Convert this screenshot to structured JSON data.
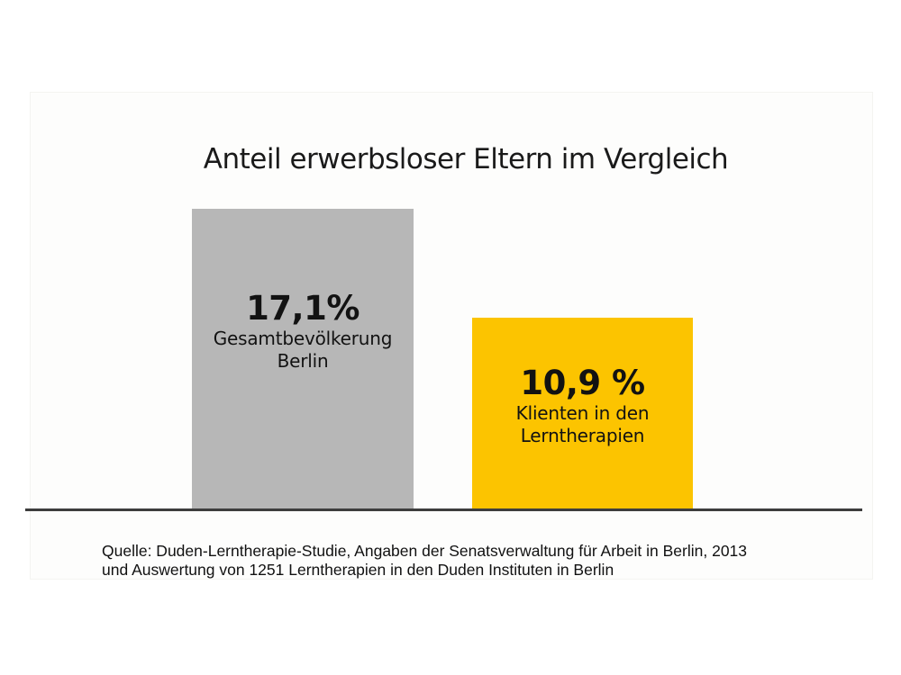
{
  "chart": {
    "title": "Anteil erwerbsloser Eltern im Vergleich",
    "bars": [
      {
        "name": "Gesamtbevölkerung Berlin",
        "value": 17.1,
        "value_label": "17,1%",
        "label_line1": "Gesamtbevölkerung",
        "label_line2": "Berlin",
        "color": "#b7b7b7"
      },
      {
        "name": "Klienten in den Lerntherapien",
        "value": 10.9,
        "value_label": "10,9 %",
        "label_line1": "Klienten in den",
        "label_line2": "Lerntherapien",
        "color": "#fcc400"
      }
    ],
    "source_line1": "Quelle: Duden-Lerntherapie-Studie, Angaben der Senatsverwaltung für Arbeit in Berlin, 2013",
    "source_line2": "und Auswertung von 1251 Lerntherapien in den Duden Instituten in Berlin"
  },
  "chart_data": {
    "type": "bar",
    "title": "Anteil erwerbsloser Eltern im Vergleich",
    "categories": [
      "Gesamtbevölkerung Berlin",
      "Klienten in den Lerntherapien"
    ],
    "values": [
      17.1,
      10.9
    ],
    "value_labels": [
      "17,1%",
      "10,9 %"
    ],
    "colors": [
      "#b7b7b7",
      "#fcc400"
    ],
    "unit": "%",
    "xlabel": "",
    "ylabel": "",
    "ylim": [
      0,
      18
    ],
    "grid": false,
    "legend": false,
    "axis_line_color": "#3d3d3d",
    "annotations": [
      "Quelle: Duden-Lerntherapie-Studie, Angaben der Senatsverwaltung für Arbeit in Berlin, 2013 und Auswertung von 1251 Lerntherapien in den Duden Instituten in Berlin"
    ]
  }
}
